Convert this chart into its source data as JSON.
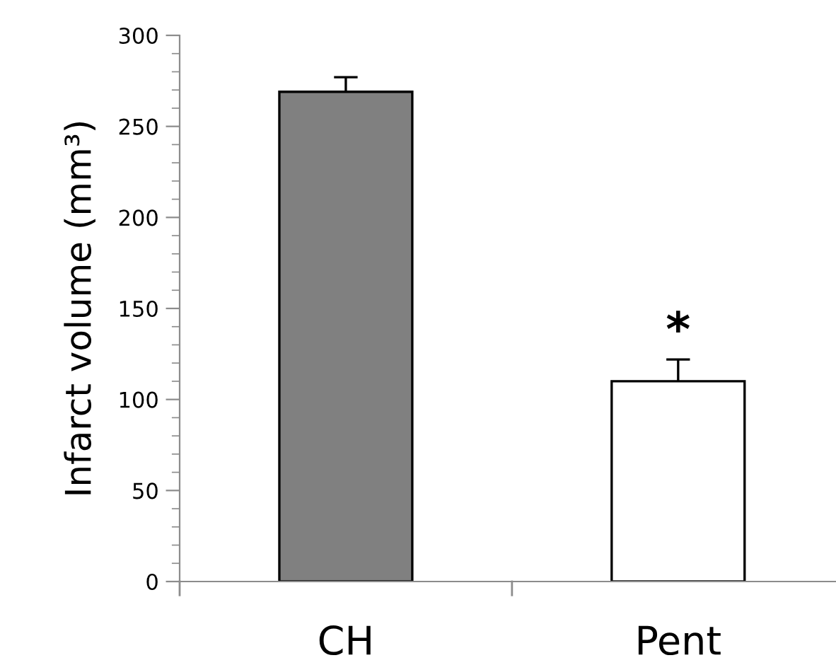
{
  "chart_data": {
    "type": "bar",
    "ylabel": "Infarct volume (mm³)",
    "categories": [
      "CH",
      "Pent"
    ],
    "values": [
      269,
      110
    ],
    "errors": [
      8,
      12
    ],
    "colors": [
      "#808080",
      "#ffffff"
    ],
    "annotations": [
      {
        "text": "*",
        "x": "Pent",
        "y": 122
      }
    ],
    "ylim": [
      0,
      300
    ],
    "yticks": [
      0,
      {
        "value": 10,
        "label": null
      },
      {
        "value": 20,
        "label": null
      },
      {
        "value": 30,
        "label": null
      },
      {
        "value": 40,
        "label": null
      },
      50,
      {
        "value": 60,
        "label": null
      },
      {
        "value": 70,
        "label": null
      },
      {
        "value": 80,
        "label": null
      },
      {
        "value": 90,
        "label": null
      },
      100,
      {
        "value": 110,
        "label": null
      },
      {
        "value": 120,
        "label": null
      },
      {
        "value": 130,
        "label": null
      },
      {
        "value": 140,
        "label": null
      },
      150,
      {
        "value": 160,
        "label": null
      },
      {
        "value": 170,
        "label": null
      },
      {
        "value": 180,
        "label": null
      },
      {
        "value": 190,
        "label": null
      },
      200,
      {
        "value": 210,
        "label": null
      },
      {
        "value": 220,
        "label": null
      },
      {
        "value": 230,
        "label": null
      },
      {
        "value": 240,
        "label": null
      },
      250,
      {
        "value": 260,
        "label": null
      },
      {
        "value": 270,
        "label": null
      },
      {
        "value": 280,
        "label": null
      },
      {
        "value": 290,
        "label": null
      },
      300
    ],
    "grid": false,
    "legend": false
  }
}
